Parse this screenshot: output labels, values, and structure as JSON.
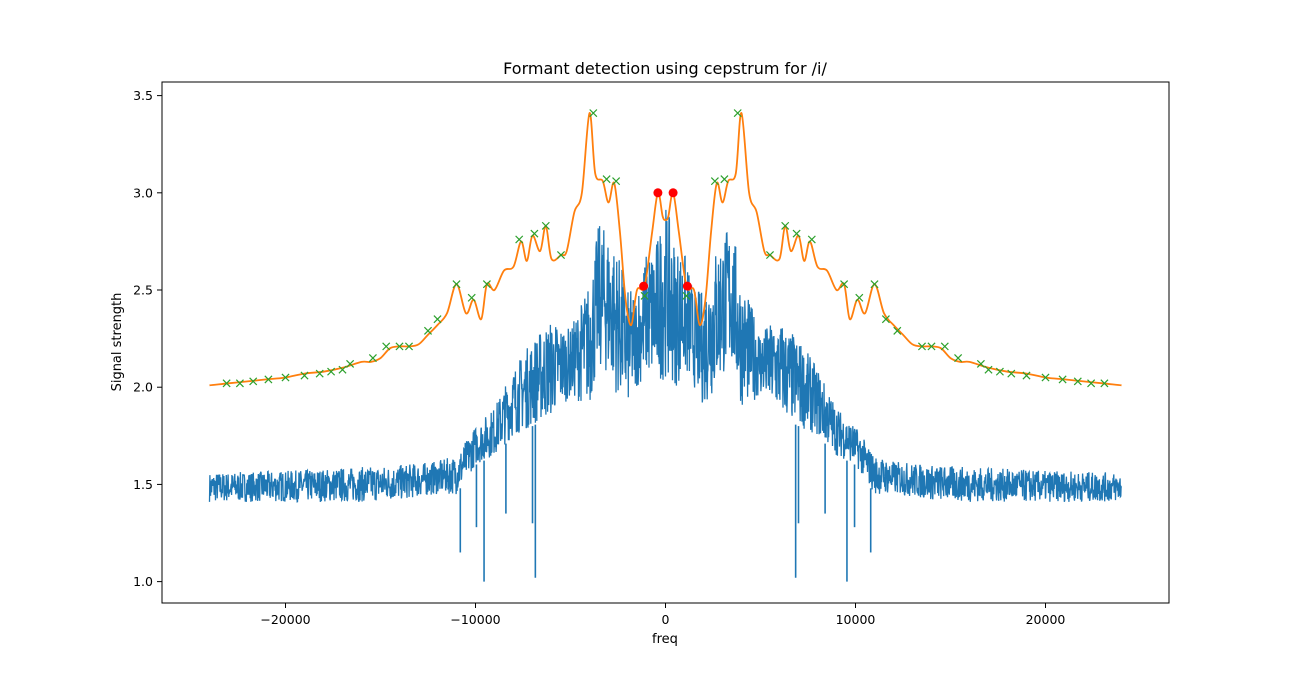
{
  "chart_data": {
    "type": "line",
    "title": "Formant detection using cepstrum for /i/",
    "xlabel": "freq",
    "ylabel": "Signal strength",
    "xlim": [
      -26500,
      26500
    ],
    "ylim": [
      0.89,
      3.57
    ],
    "xticks": [
      -20000,
      -10000,
      0,
      10000,
      20000
    ],
    "xtick_labels": [
      "−20000",
      "−10000",
      "0",
      "10000",
      "20000"
    ],
    "yticks": [
      1.0,
      1.5,
      2.0,
      2.5,
      3.0,
      3.5
    ],
    "ytick_labels": [
      "1.0",
      "1.5",
      "2.0",
      "2.5",
      "3.0",
      "3.5"
    ],
    "grid": false,
    "colors": {
      "spectrum": "#1f77b4",
      "envelope": "#ff7f0e",
      "peaks": "#2ca02c",
      "formants": "#ff0000"
    },
    "series": [
      {
        "kind": "spectrum",
        "x_range": [
          -24000,
          24000
        ],
        "envelope_points": [
          {
            "x": 0,
            "low": 2.05,
            "high": 2.95
          },
          {
            "x": 500,
            "low": 2.0,
            "high": 2.75
          },
          {
            "x": 1000,
            "low": 2.05,
            "high": 2.7
          },
          {
            "x": 1500,
            "low": 2.0,
            "high": 2.5
          },
          {
            "x": 2000,
            "low": 1.9,
            "high": 2.5
          },
          {
            "x": 2500,
            "low": 1.95,
            "high": 2.7
          },
          {
            "x": 3000,
            "low": 2.05,
            "high": 2.8
          },
          {
            "x": 3500,
            "low": 2.1,
            "high": 2.85
          },
          {
            "x": 4000,
            "low": 1.9,
            "high": 2.55
          },
          {
            "x": 5000,
            "low": 1.95,
            "high": 2.3
          },
          {
            "x": 6000,
            "low": 1.85,
            "high": 2.35
          },
          {
            "x": 7000,
            "low": 1.8,
            "high": 2.25
          },
          {
            "x": 8000,
            "low": 1.75,
            "high": 2.1
          },
          {
            "x": 9000,
            "low": 1.65,
            "high": 1.9
          },
          {
            "x": 10000,
            "low": 1.6,
            "high": 1.8
          },
          {
            "x": 11000,
            "low": 1.45,
            "high": 1.65
          },
          {
            "x": 12000,
            "low": 1.45,
            "high": 1.62
          },
          {
            "x": 14000,
            "low": 1.42,
            "high": 1.6
          },
          {
            "x": 16000,
            "low": 1.41,
            "high": 1.59
          },
          {
            "x": 18000,
            "low": 1.41,
            "high": 1.58
          },
          {
            "x": 20000,
            "low": 1.41,
            "high": 1.57
          },
          {
            "x": 24000,
            "low": 1.41,
            "high": 1.56
          }
        ],
        "dips": [
          {
            "x": 9550,
            "y": 1.0
          },
          {
            "x": 6850,
            "y": 1.02
          },
          {
            "x": 10800,
            "y": 1.15
          },
          {
            "x": 9950,
            "y": 1.28
          },
          {
            "x": 7000,
            "y": 1.3
          },
          {
            "x": 8400,
            "y": 1.35
          }
        ]
      },
      {
        "kind": "cepstral-envelope",
        "x": [
          -24000,
          -23000,
          -22000,
          -21000,
          -20000,
          -19000,
          -18000,
          -17000,
          -16000,
          -15500,
          -15000,
          -14500,
          -14000,
          -13500,
          -13000,
          -12500,
          -12000,
          -11500,
          -11000,
          -10500,
          -10100,
          -9700,
          -9400,
          -9000,
          -8500,
          -8000,
          -7600,
          -7300,
          -7000,
          -6600,
          -6300,
          -6000,
          -5500,
          -5200,
          -4800,
          -4400,
          -4000,
          -3700,
          -3300,
          -3000,
          -2700,
          -2400,
          -2100,
          -1800,
          -1500,
          -1100,
          -700,
          -400,
          -150,
          0,
          150,
          400,
          700,
          1100,
          1500,
          1800,
          2100,
          2400,
          2700,
          3000,
          3300,
          3700,
          4000,
          4400,
          4800,
          5200,
          5500,
          6000,
          6300,
          6600,
          7000,
          7300,
          7600,
          8000,
          8500,
          9000,
          9400,
          9700,
          10100,
          10500,
          11000,
          11500,
          12000,
          12500,
          13000,
          13500,
          14000,
          14500,
          15000,
          15500,
          16000,
          17000,
          18000,
          19000,
          20000,
          21000,
          22000,
          23000,
          24000
        ],
        "y": [
          2.01,
          2.02,
          2.03,
          2.04,
          2.05,
          2.07,
          2.08,
          2.1,
          2.13,
          2.13,
          2.15,
          2.2,
          2.21,
          2.21,
          2.22,
          2.27,
          2.32,
          2.38,
          2.53,
          2.38,
          2.45,
          2.35,
          2.53,
          2.5,
          2.6,
          2.62,
          2.75,
          2.65,
          2.78,
          2.7,
          2.83,
          2.66,
          2.68,
          2.7,
          2.9,
          3.0,
          3.41,
          3.1,
          3.06,
          2.95,
          3.05,
          2.8,
          2.45,
          2.32,
          2.5,
          2.52,
          2.8,
          3.0,
          2.88,
          2.86,
          2.88,
          3.0,
          2.8,
          2.52,
          2.5,
          2.32,
          2.45,
          2.8,
          3.05,
          2.95,
          3.06,
          3.1,
          3.41,
          3.0,
          2.9,
          2.7,
          2.68,
          2.66,
          2.83,
          2.7,
          2.78,
          2.65,
          2.75,
          2.62,
          2.6,
          2.5,
          2.53,
          2.35,
          2.45,
          2.38,
          2.53,
          2.38,
          2.32,
          2.27,
          2.22,
          2.21,
          2.21,
          2.2,
          2.15,
          2.13,
          2.13,
          2.1,
          2.08,
          2.07,
          2.05,
          2.04,
          2.03,
          2.02,
          2.01
        ]
      },
      {
        "kind": "peaks",
        "marker": "x",
        "x": [
          -23100,
          -22400,
          -21700,
          -20900,
          -20000,
          -19000,
          -18200,
          -17600,
          -17000,
          -16600,
          -15400,
          -14700,
          -14000,
          -13500,
          -12500,
          -12000,
          -11000,
          -10200,
          -9400,
          -7700,
          -6900,
          -6300,
          -5500,
          -3800,
          -3100,
          -2600,
          -1100,
          1100,
          2600,
          3100,
          3800,
          5500,
          6300,
          6900,
          7700,
          9400,
          10200,
          11000,
          11600,
          12200,
          13500,
          14000,
          14700,
          15400,
          16600,
          17000,
          17600,
          18200,
          19000,
          20000,
          20900,
          21700,
          22400,
          23100
        ],
        "y": [
          2.02,
          2.02,
          2.03,
          2.04,
          2.05,
          2.06,
          2.07,
          2.08,
          2.09,
          2.12,
          2.15,
          2.21,
          2.21,
          2.21,
          2.29,
          2.35,
          2.53,
          2.46,
          2.53,
          2.76,
          2.79,
          2.83,
          2.68,
          3.41,
          3.07,
          3.06,
          2.47,
          2.47,
          3.06,
          3.07,
          3.41,
          2.68,
          2.83,
          2.79,
          2.76,
          2.53,
          2.46,
          2.53,
          2.35,
          2.29,
          2.21,
          2.21,
          2.21,
          2.15,
          2.12,
          2.09,
          2.08,
          2.07,
          2.06,
          2.05,
          2.04,
          2.03,
          2.02,
          2.02
        ]
      },
      {
        "kind": "formants",
        "marker": "o",
        "x": [
          -1150,
          -400,
          400,
          1150
        ],
        "y": [
          2.52,
          3.0,
          3.0,
          2.52
        ]
      }
    ]
  }
}
